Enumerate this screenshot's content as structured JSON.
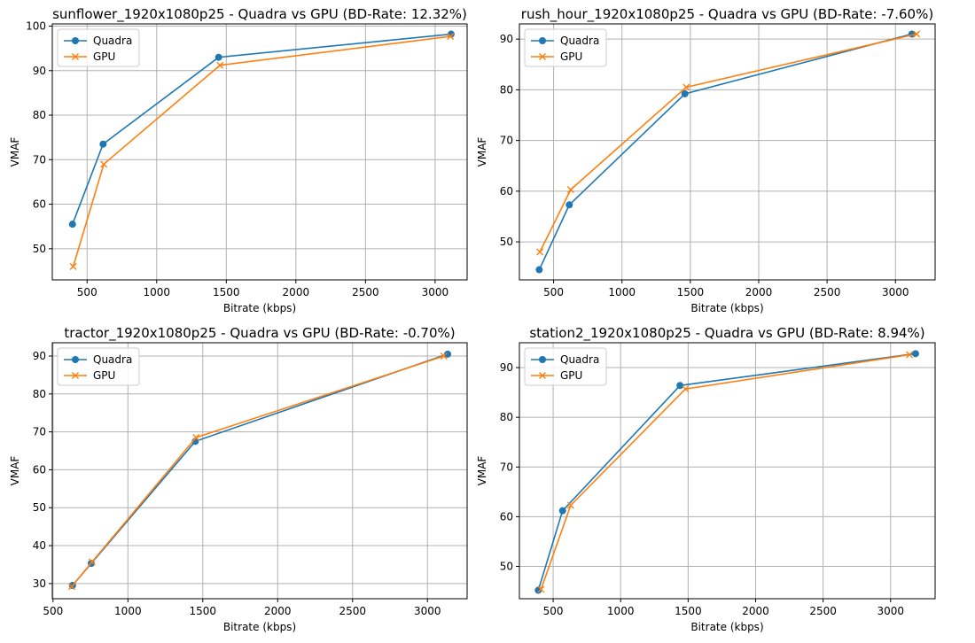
{
  "colors": {
    "quadra": "#1f77b4",
    "gpu": "#ff7f0e"
  },
  "chart_data": [
    {
      "type": "line",
      "title": "sunflower_1920x1080p25 - Quadra vs GPU (BD-Rate: 12.32%)",
      "xlabel": "Bitrate (kbps)",
      "ylabel": "VMAF",
      "xlim": [
        250,
        3230
      ],
      "ylim": [
        43,
        100.5
      ],
      "xticks": [
        500,
        1000,
        1500,
        2000,
        2500,
        3000
      ],
      "xtick_labels": [
        "500",
        "1000",
        "1500",
        "2000",
        "2500",
        "3000"
      ],
      "yticks": [
        50,
        60,
        70,
        80,
        90,
        100
      ],
      "ytick_labels": [
        "50",
        "60",
        "70",
        "80",
        "90",
        "100"
      ],
      "grid": true,
      "legend": "top-left",
      "series": [
        {
          "name": "Quadra",
          "marker": "circle",
          "x": [
            395,
            615,
            1445,
            3115
          ],
          "y": [
            55.5,
            73.5,
            93.0,
            98.2
          ]
        },
        {
          "name": "GPU",
          "marker": "x",
          "x": [
            400,
            620,
            1455,
            3110
          ],
          "y": [
            46.0,
            69.0,
            91.2,
            97.7
          ]
        }
      ]
    },
    {
      "type": "line",
      "title": "rush_hour_1920x1080p25 - Quadra vs GPU (BD-Rate: -7.60%)",
      "xlabel": "Bitrate (kbps)",
      "ylabel": "VMAF",
      "xlim": [
        250,
        3290
      ],
      "ylim": [
        42.5,
        93
      ],
      "xticks": [
        500,
        1000,
        1500,
        2000,
        2500,
        3000
      ],
      "xtick_labels": [
        "500",
        "1000",
        "1500",
        "2000",
        "2500",
        "3000"
      ],
      "yticks": [
        50,
        60,
        70,
        80,
        90
      ],
      "ytick_labels": [
        "50",
        "60",
        "70",
        "80",
        "90"
      ],
      "grid": true,
      "legend": "top-left",
      "series": [
        {
          "name": "Quadra",
          "marker": "circle",
          "x": [
            395,
            615,
            1460,
            3120
          ],
          "y": [
            44.5,
            57.3,
            79.2,
            91.0
          ]
        },
        {
          "name": "GPU",
          "marker": "x",
          "x": [
            400,
            625,
            1470,
            3155
          ],
          "y": [
            48.0,
            60.3,
            80.5,
            91.0
          ]
        }
      ]
    },
    {
      "type": "line",
      "title": "tractor_1920x1080p25 - Quadra vs GPU (BD-Rate: -0.70%)",
      "xlabel": "Bitrate (kbps)",
      "ylabel": "VMAF",
      "xlim": [
        495,
        3265
      ],
      "ylim": [
        26,
        93.5
      ],
      "xticks": [
        500,
        1000,
        1500,
        2000,
        2500,
        3000
      ],
      "xtick_labels": [
        "500",
        "1000",
        "1500",
        "2000",
        "2500",
        "3000"
      ],
      "yticks": [
        30,
        40,
        50,
        60,
        70,
        80,
        90
      ],
      "ytick_labels": [
        "30",
        "40",
        "50",
        "60",
        "70",
        "80",
        "90"
      ],
      "grid": true,
      "legend": "top-left",
      "series": [
        {
          "name": "Quadra",
          "marker": "circle",
          "x": [
            630,
            755,
            1450,
            3135
          ],
          "y": [
            29.5,
            35.3,
            67.5,
            90.5
          ]
        },
        {
          "name": "GPU",
          "marker": "x",
          "x": [
            625,
            760,
            1455,
            3110
          ],
          "y": [
            29.2,
            35.7,
            68.5,
            90.0
          ]
        }
      ]
    },
    {
      "type": "line",
      "title": "station2_1920x1080p25 - Quadra vs GPU (BD-Rate: 8.94%)",
      "xlabel": "Bitrate (kbps)",
      "ylabel": "VMAF",
      "xlim": [
        250,
        3330
      ],
      "ylim": [
        43.5,
        95
      ],
      "xticks": [
        500,
        1000,
        1500,
        2000,
        2500,
        3000
      ],
      "xtick_labels": [
        "500",
        "1000",
        "1500",
        "2000",
        "2500",
        "3000"
      ],
      "yticks": [
        50,
        60,
        70,
        80,
        90
      ],
      "ytick_labels": [
        "50",
        "60",
        "70",
        "80",
        "90"
      ],
      "grid": true,
      "legend": "top-left",
      "series": [
        {
          "name": "Quadra",
          "marker": "circle",
          "x": [
            390,
            570,
            1440,
            3185
          ],
          "y": [
            45.2,
            61.2,
            86.4,
            92.8
          ]
        },
        {
          "name": "GPU",
          "marker": "x",
          "x": [
            410,
            630,
            1480,
            3140
          ],
          "y": [
            45.4,
            62.3,
            85.7,
            92.6
          ]
        }
      ]
    }
  ]
}
